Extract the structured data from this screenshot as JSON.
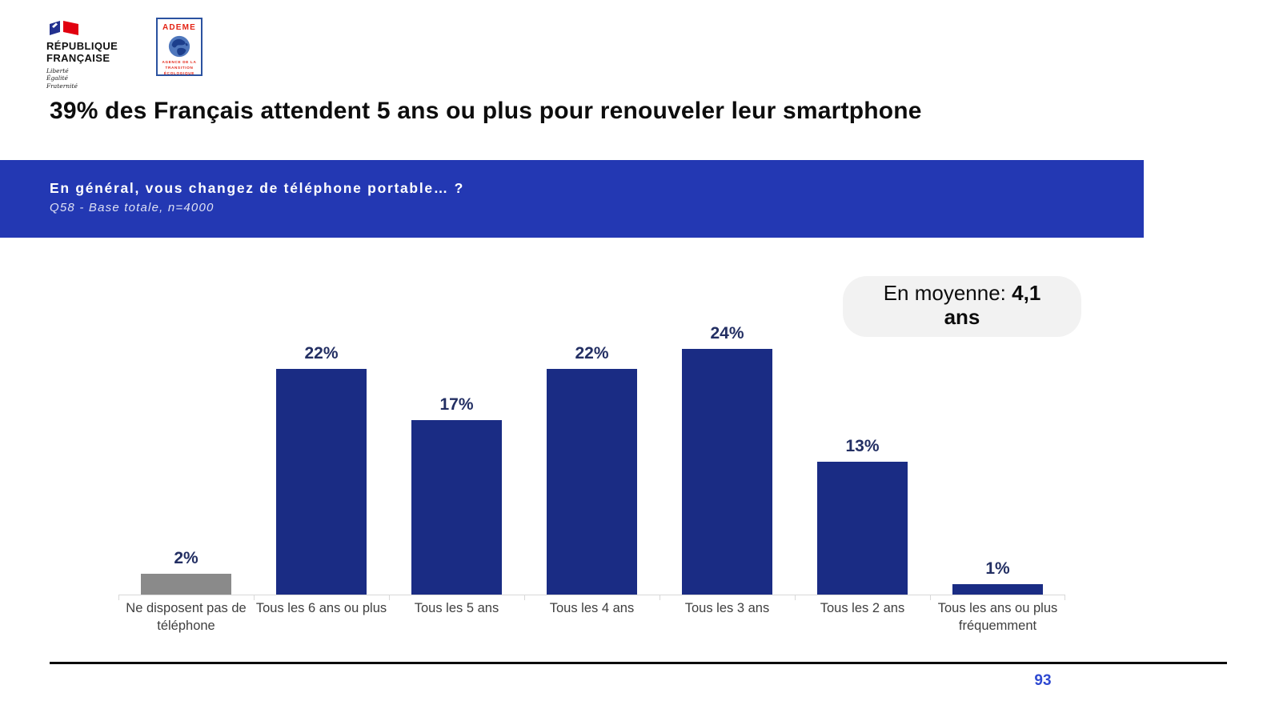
{
  "header": {
    "republique_logo": {
      "line1": "RÉPUBLIQUE",
      "line2": "FRANÇAISE",
      "motto_lines": [
        "Liberté",
        "Égalité",
        "Fraternité"
      ]
    },
    "ademe_logo": {
      "name": "ADEME",
      "sub_line1": "AGENCE DE LA",
      "sub_line2": "TRANSITION",
      "sub_line3": "ÉCOLOGIQUE"
    }
  },
  "title": "39% des Français attendent 5 ans ou plus pour renouveler leur smartphone",
  "banner": {
    "question": "En général, vous changez de téléphone portable… ?",
    "base": "Q58 - Base totale, n=4000",
    "bg_color": "#2338B3"
  },
  "average_badge": {
    "prefix": "En moyenne: ",
    "value": "4,1",
    "unit": "ans",
    "bg_color": "#F2F2F2"
  },
  "chart_data": {
    "type": "bar",
    "title": "En général, vous changez de téléphone portable… ?",
    "categories": [
      "Ne disposent pas de téléphone",
      "Tous les 6 ans ou plus",
      "Tous les 5 ans",
      "Tous les 4 ans",
      "Tous les 3 ans",
      "Tous les 2 ans",
      "Tous les ans ou plus fréquemment"
    ],
    "values": [
      2,
      22,
      17,
      22,
      24,
      13,
      1
    ],
    "value_labels": [
      "2%",
      "22%",
      "17%",
      "22%",
      "24%",
      "13%",
      "1%"
    ],
    "bar_colors": [
      "#8A8A8A",
      "#1A2C84",
      "#1A2C84",
      "#1A2C84",
      "#1A2C84",
      "#1A2C84",
      "#1A2C84"
    ],
    "value_label_color": "#232F63",
    "axis_color": "#D8D8D8",
    "xlabel": "",
    "ylabel": "",
    "ylim": [
      0,
      26
    ],
    "grid": false,
    "legend": null,
    "annotation": "En moyenne: 4,1 ans"
  },
  "footer": {
    "page_number": "93"
  }
}
